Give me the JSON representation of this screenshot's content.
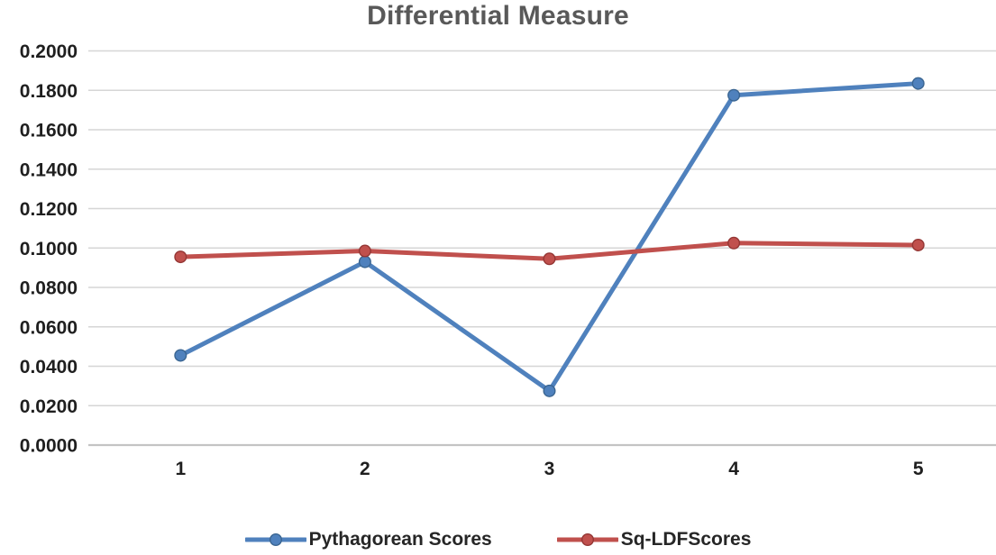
{
  "figure": {
    "background": "#ffffff"
  },
  "chart_data": {
    "type": "line",
    "title": "Differential Measure",
    "xlabel": "",
    "ylabel": "",
    "categories": [
      "1",
      "2",
      "3",
      "4",
      "5"
    ],
    "series": [
      {
        "name": "Pythagorean Scores",
        "color": "#4F81BD",
        "marker_stroke": "#3A6591",
        "marker": "circle",
        "values": [
          0.0455,
          0.093,
          0.0275,
          0.1775,
          0.1835
        ]
      },
      {
        "name": "Sq-LDFScores",
        "color": "#C0504D",
        "marker_stroke": "#943634",
        "marker": "circle",
        "values": [
          0.0955,
          0.0985,
          0.0945,
          0.1025,
          0.1015
        ]
      }
    ],
    "ylim": [
      0.0,
      0.2
    ],
    "y_step": 0.02,
    "y_tick_labels": [
      "0.0000",
      "0.0200",
      "0.0400",
      "0.0600",
      "0.0800",
      "0.1000",
      "0.1200",
      "0.1400",
      "0.1600",
      "0.1800",
      "0.2000"
    ],
    "grid": true,
    "gridline_color": "#D6D6D6",
    "axis_line_color": "#C4C4C4",
    "title_color": "#595959",
    "tick_label_color": "#1F1F1F",
    "legend_position": "bottom"
  }
}
